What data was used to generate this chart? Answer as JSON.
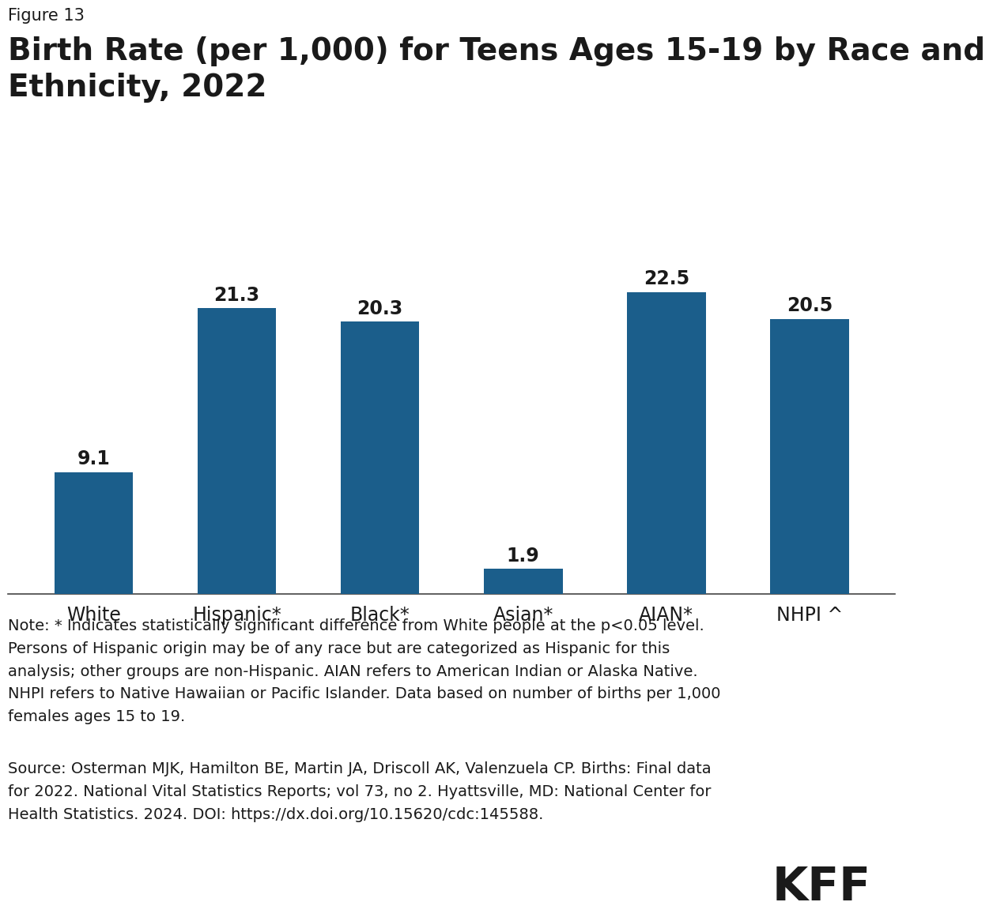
{
  "figure_label": "Figure 13",
  "title_line1": "Birth Rate (per 1,000) for Teens Ages 15-19 by Race and",
  "title_line2": "Ethnicity, 2022",
  "categories": [
    "White",
    "Hispanic*",
    "Black*",
    "Asian*",
    "AIAN*",
    "NHPI ^"
  ],
  "values": [
    9.1,
    21.3,
    20.3,
    1.9,
    22.5,
    20.5
  ],
  "bar_color": "#1B5E8B",
  "background_color": "#ffffff",
  "text_color": "#1a1a1a",
  "ylim": [
    0,
    27
  ],
  "value_label_fontsize": 17,
  "category_fontsize": 17,
  "title_fontsize": 28,
  "figure_label_fontsize": 15,
  "note_line1": "Note: * Indicates statistically significant difference from White people at the p<0.05 level.",
  "note_line2": "Persons of Hispanic origin may be of any race but are categorized as Hispanic for this",
  "note_line3": "analysis; other groups are non-Hispanic. AIAN refers to American Indian or Alaska Native.",
  "note_line4": "NHPI refers to Native Hawaiian or Pacific Islander. Data based on number of births per 1,000",
  "note_line5": "females ages 15 to 19.",
  "source_line1": "Source: Osterman MJK, Hamilton BE, Martin JA, Driscoll AK, Valenzuela CP. Births: Final data",
  "source_line2": "for 2022. National Vital Statistics Reports; vol 73, no 2. Hyattsville, MD: National Center for",
  "source_line3": "Health Statistics. 2024. DOI: https://dx.doi.org/10.15620/cdc:145588.",
  "kff_logo_text": "KFF",
  "note_fontsize": 14,
  "source_fontsize": 14
}
